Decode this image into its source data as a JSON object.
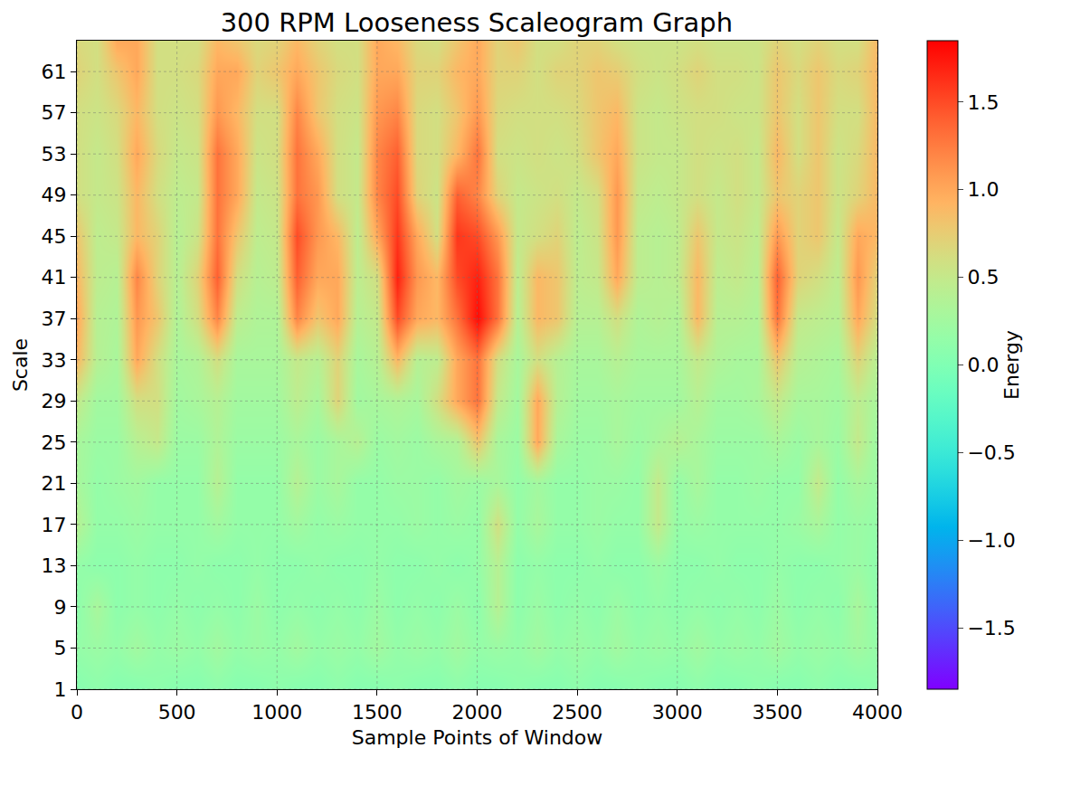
{
  "chart_data": {
    "type": "heatmap",
    "title": "300 RPM Looseness Scaleogram Graph",
    "x_label": "Sample Points of Window",
    "y_label": "Scale",
    "x": [
      0,
      100,
      200,
      300,
      400,
      500,
      600,
      700,
      800,
      900,
      1000,
      1100,
      1200,
      1300,
      1400,
      1500,
      1600,
      1700,
      1800,
      1900,
      2000,
      2100,
      2200,
      2300,
      2400,
      2500,
      2600,
      2700,
      2800,
      2900,
      3000,
      3100,
      3200,
      3300,
      3400,
      3500,
      3600,
      3700,
      3800,
      3900,
      4000
    ],
    "y": [
      1,
      5,
      9,
      13,
      17,
      21,
      25,
      29,
      33,
      37,
      41,
      45,
      49,
      53,
      57,
      61,
      64
    ],
    "z": [
      [
        0.05,
        0.1,
        0.05,
        0.05,
        0.1,
        0.05,
        0.05,
        0.1,
        0.05,
        0.05,
        0.1,
        0.05,
        0.05,
        0.1,
        0.05,
        0.05,
        0.1,
        0.05,
        0.05,
        0.1,
        0.05,
        0.05,
        0.1,
        0.05,
        0.05,
        0.1,
        0.05,
        0.05,
        0.1,
        0.05,
        0.05,
        0.1,
        0.05,
        0.05,
        0.1,
        0.05,
        0.05,
        0.1,
        0.05,
        0.05,
        0.1
      ],
      [
        0.15,
        0.2,
        0.15,
        0.25,
        0.15,
        0.2,
        0.15,
        0.25,
        0.15,
        0.2,
        0.15,
        0.25,
        0.15,
        0.2,
        0.15,
        0.25,
        0.15,
        0.2,
        0.15,
        0.25,
        0.15,
        0.2,
        0.15,
        0.25,
        0.15,
        0.2,
        0.15,
        0.25,
        0.15,
        0.2,
        0.15,
        0.25,
        0.15,
        0.2,
        0.15,
        0.25,
        0.15,
        0.2,
        0.15,
        0.25,
        0.15
      ],
      [
        0.1,
        0.3,
        0.1,
        0.15,
        0.1,
        0.15,
        0.1,
        0.15,
        0.1,
        0.2,
        0.1,
        0.15,
        0.1,
        0.15,
        0.1,
        0.2,
        0.1,
        0.15,
        0.1,
        0.2,
        0.1,
        0.4,
        0.1,
        0.2,
        0.1,
        0.15,
        0.1,
        0.2,
        0.1,
        0.15,
        0.1,
        0.15,
        0.1,
        0.15,
        0.1,
        0.2,
        0.1,
        0.15,
        0.1,
        0.3,
        0.1
      ],
      [
        0.15,
        0.1,
        0.1,
        0.15,
        0.1,
        0.1,
        0.15,
        0.1,
        0.1,
        0.15,
        0.1,
        0.1,
        0.15,
        0.1,
        0.1,
        0.15,
        0.1,
        0.1,
        0.15,
        0.1,
        0.15,
        0.4,
        0.1,
        0.15,
        0.1,
        0.1,
        0.15,
        0.1,
        0.1,
        0.2,
        0.1,
        0.1,
        0.15,
        0.1,
        0.1,
        0.15,
        0.1,
        0.1,
        0.15,
        0.2,
        0.1
      ],
      [
        0.4,
        0.15,
        0.15,
        0.2,
        0.15,
        0.15,
        0.15,
        0.25,
        0.15,
        0.15,
        0.15,
        0.25,
        0.15,
        0.2,
        0.15,
        0.15,
        0.15,
        0.2,
        0.15,
        0.2,
        0.15,
        0.6,
        0.15,
        0.3,
        0.15,
        0.15,
        0.2,
        0.15,
        0.15,
        0.5,
        0.15,
        0.2,
        0.15,
        0.15,
        0.15,
        0.15,
        0.2,
        0.3,
        0.15,
        0.2,
        0.15
      ],
      [
        0.3,
        0.15,
        0.2,
        0.25,
        0.15,
        0.15,
        0.15,
        0.4,
        0.15,
        0.15,
        0.15,
        0.4,
        0.2,
        0.3,
        0.15,
        0.15,
        0.2,
        0.2,
        0.15,
        0.25,
        0.2,
        0.3,
        0.15,
        0.25,
        0.15,
        0.15,
        0.2,
        0.2,
        0.15,
        0.5,
        0.15,
        0.3,
        0.15,
        0.15,
        0.2,
        0.15,
        0.15,
        0.5,
        0.15,
        0.3,
        0.2
      ],
      [
        0.3,
        0.2,
        0.2,
        0.4,
        0.5,
        0.2,
        0.2,
        0.35,
        0.2,
        0.2,
        0.2,
        0.3,
        0.2,
        0.3,
        0.4,
        0.2,
        0.25,
        0.2,
        0.3,
        0.35,
        0.8,
        0.3,
        0.2,
        1.0,
        0.3,
        0.2,
        0.2,
        0.3,
        0.2,
        0.3,
        0.4,
        0.3,
        0.2,
        0.2,
        0.2,
        0.3,
        0.2,
        0.3,
        0.2,
        0.5,
        0.2
      ],
      [
        0.5,
        0.25,
        0.25,
        0.6,
        0.6,
        0.25,
        0.3,
        0.4,
        0.25,
        0.25,
        0.25,
        0.45,
        0.3,
        0.7,
        0.25,
        0.3,
        0.35,
        0.3,
        0.6,
        1.0,
        1.3,
        0.5,
        0.25,
        1.0,
        0.4,
        0.25,
        0.25,
        0.3,
        0.25,
        0.25,
        0.25,
        0.4,
        0.25,
        0.25,
        0.3,
        0.5,
        0.3,
        0.3,
        0.25,
        0.45,
        0.3
      ],
      [
        0.9,
        0.4,
        0.3,
        1.0,
        0.6,
        0.3,
        0.35,
        0.6,
        0.3,
        0.3,
        0.3,
        0.5,
        0.4,
        0.7,
        0.3,
        0.4,
        0.9,
        0.4,
        0.45,
        1.0,
        1.3,
        0.6,
        0.3,
        0.6,
        0.4,
        0.3,
        0.3,
        0.4,
        0.3,
        0.3,
        0.3,
        0.5,
        0.35,
        0.3,
        0.3,
        0.8,
        0.4,
        0.35,
        0.3,
        0.7,
        0.4
      ],
      [
        1.0,
        0.4,
        0.35,
        1.1,
        0.8,
        0.35,
        0.6,
        1.2,
        0.45,
        0.35,
        0.35,
        1.2,
        0.8,
        1.0,
        0.4,
        0.5,
        1.5,
        1.0,
        0.9,
        1.3,
        1.8,
        1.3,
        0.4,
        0.9,
        0.8,
        0.4,
        0.4,
        0.6,
        0.35,
        0.4,
        0.35,
        0.9,
        0.4,
        0.4,
        0.35,
        1.3,
        0.5,
        0.45,
        0.4,
        1.0,
        0.6
      ],
      [
        0.9,
        0.45,
        0.4,
        1.2,
        0.7,
        0.4,
        0.7,
        1.4,
        0.6,
        0.4,
        0.45,
        1.4,
        1.0,
        1.0,
        0.45,
        0.6,
        1.7,
        1.1,
        0.9,
        1.5,
        1.7,
        1.3,
        0.45,
        0.9,
        0.8,
        0.45,
        0.5,
        1.0,
        0.45,
        0.4,
        0.45,
        0.9,
        0.45,
        0.5,
        0.4,
        1.4,
        0.7,
        0.6,
        0.45,
        1.1,
        0.7
      ],
      [
        0.8,
        0.45,
        0.5,
        0.9,
        0.7,
        0.4,
        0.55,
        1.3,
        0.8,
        0.45,
        0.5,
        1.5,
        1.1,
        0.9,
        0.45,
        1.0,
        1.6,
        1.0,
        0.6,
        1.6,
        1.5,
        1.1,
        0.5,
        0.6,
        0.7,
        0.45,
        0.55,
        1.1,
        0.45,
        0.4,
        0.45,
        0.8,
        0.5,
        0.55,
        0.45,
        1.1,
        0.7,
        0.8,
        0.5,
        1.0,
        0.9
      ],
      [
        0.6,
        0.5,
        0.55,
        0.9,
        0.6,
        0.45,
        0.5,
        1.3,
        1.0,
        0.5,
        0.55,
        1.3,
        1.1,
        0.6,
        0.5,
        1.2,
        1.5,
        0.7,
        0.55,
        1.4,
        1.2,
        0.7,
        0.5,
        0.55,
        0.6,
        0.5,
        0.6,
        1.1,
        0.5,
        0.45,
        0.5,
        0.6,
        0.5,
        0.6,
        0.5,
        0.8,
        0.7,
        0.8,
        0.55,
        0.7,
        0.9
      ],
      [
        0.6,
        0.5,
        0.6,
        1.0,
        0.65,
        0.5,
        0.55,
        1.3,
        1.0,
        0.55,
        0.6,
        1.3,
        1.0,
        0.6,
        0.5,
        1.2,
        1.4,
        0.65,
        0.6,
        0.9,
        1.3,
        0.6,
        0.55,
        0.6,
        0.55,
        0.6,
        0.8,
        1.0,
        0.55,
        0.5,
        0.5,
        0.6,
        0.55,
        0.6,
        0.5,
        0.9,
        0.6,
        0.8,
        0.55,
        0.65,
        0.9
      ],
      [
        0.6,
        0.55,
        0.65,
        0.9,
        0.6,
        0.55,
        0.6,
        1.1,
        0.9,
        0.6,
        0.6,
        1.2,
        0.8,
        0.6,
        0.55,
        1.1,
        1.2,
        0.65,
        0.6,
        0.8,
        1.1,
        0.65,
        0.6,
        0.6,
        0.6,
        0.65,
        0.8,
        0.9,
        0.55,
        0.5,
        0.55,
        0.6,
        0.6,
        0.55,
        0.55,
        0.8,
        0.6,
        0.8,
        0.6,
        0.6,
        0.9
      ],
      [
        0.7,
        0.6,
        0.8,
        1.0,
        0.6,
        0.6,
        0.65,
        1.0,
        1.0,
        0.7,
        0.8,
        1.0,
        0.8,
        0.65,
        0.6,
        1.0,
        1.0,
        0.7,
        0.7,
        0.9,
        1.0,
        0.7,
        0.7,
        0.6,
        0.7,
        0.7,
        0.8,
        0.75,
        0.6,
        0.55,
        0.6,
        0.7,
        0.6,
        0.6,
        0.55,
        0.8,
        0.65,
        0.8,
        0.65,
        0.7,
        0.9
      ],
      [
        0.65,
        0.6,
        1.0,
        1.0,
        0.6,
        0.6,
        0.6,
        0.9,
        0.8,
        0.65,
        0.7,
        0.9,
        0.7,
        0.6,
        0.6,
        1.0,
        0.9,
        0.65,
        0.6,
        0.8,
        1.0,
        0.7,
        0.8,
        0.6,
        0.6,
        0.7,
        0.7,
        0.6,
        0.55,
        0.55,
        0.55,
        0.6,
        0.55,
        0.55,
        0.55,
        0.7,
        0.6,
        0.7,
        0.6,
        0.6,
        0.9
      ]
    ],
    "xlim": [
      0,
      4000
    ],
    "ylim": [
      1,
      64
    ],
    "xticks": [
      0,
      500,
      1000,
      1500,
      2000,
      2500,
      3000,
      3500,
      4000
    ],
    "yticks": [
      1,
      5,
      9,
      13,
      17,
      21,
      25,
      29,
      33,
      37,
      41,
      45,
      49,
      53,
      57,
      61
    ],
    "zlim": [
      -1.85,
      1.85
    ],
    "zticks": [
      {
        "value": -1.5,
        "label": "−1.5"
      },
      {
        "value": -1.0,
        "label": "−1.0"
      },
      {
        "value": -0.5,
        "label": "−0.5"
      },
      {
        "value": 0.0,
        "label": "0.0"
      },
      0.5,
      {
        "value": 1.0,
        "label": "1.0"
      },
      1.5
    ],
    "colorbar_label": "Energy",
    "grid": true
  }
}
